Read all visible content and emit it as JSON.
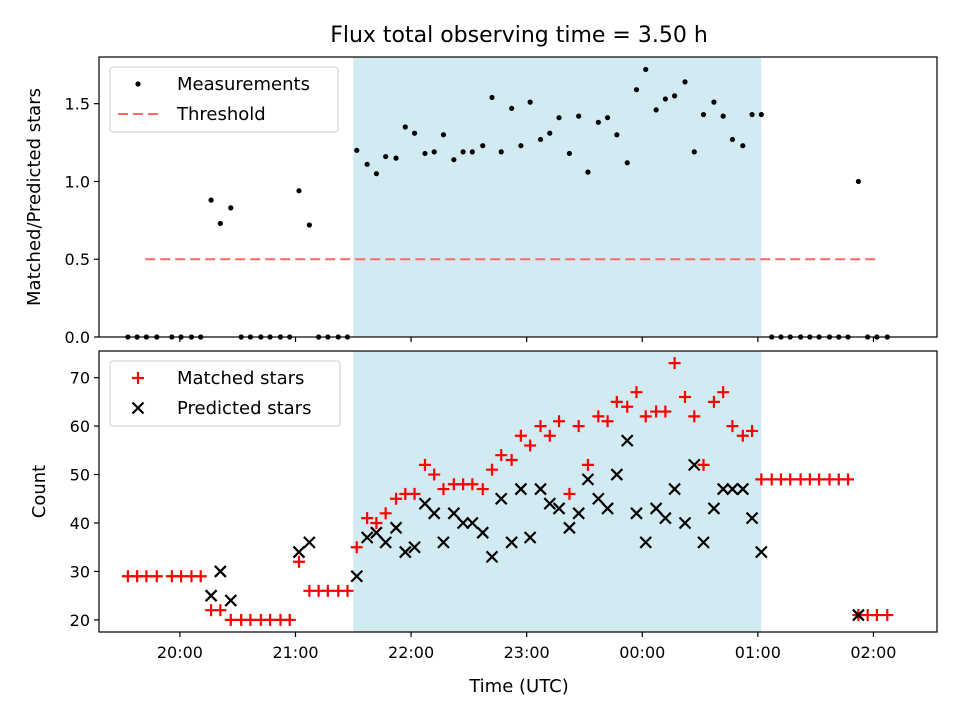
{
  "title": "Flux total observing time = 3.50 h",
  "xlabel": "Time (UTC)",
  "x_ticks": [
    "20:00",
    "21:00",
    "22:00",
    "23:00",
    "00:00",
    "01:00",
    "02:00"
  ],
  "colors": {
    "measurement": "#000000",
    "threshold": "#ff6666",
    "matched": "#ff0000",
    "predicted": "#000000",
    "shade": "#add8e6"
  },
  "chart_data": [
    {
      "type": "scatter",
      "ylabel": "Matched/Predicted stars",
      "ylim": [
        0,
        1.8
      ],
      "y_ticks": [
        "0.0",
        "0.5",
        "1.0",
        "1.5"
      ],
      "x_domain_hours": [
        19.3,
        26.55
      ],
      "shaded_x": [
        21.5,
        25.03
      ],
      "legend": {
        "placement": "upper-left",
        "entries": [
          "Measurements",
          "Threshold"
        ]
      },
      "threshold": {
        "value": 0.5,
        "x_range": [
          19.7,
          26.05
        ]
      },
      "series": [
        {
          "name": "Measurements",
          "marker": "dot",
          "points": [
            [
              19.55,
              0
            ],
            [
              19.63,
              0
            ],
            [
              19.71,
              0
            ],
            [
              19.8,
              0
            ],
            [
              19.93,
              0
            ],
            [
              20.01,
              0
            ],
            [
              20.1,
              0
            ],
            [
              20.18,
              0
            ],
            [
              20.27,
              0.88
            ],
            [
              20.35,
              0.73
            ],
            [
              20.44,
              0.83
            ],
            [
              20.53,
              0
            ],
            [
              20.61,
              0
            ],
            [
              20.7,
              0
            ],
            [
              20.78,
              0
            ],
            [
              20.87,
              0
            ],
            [
              20.95,
              0
            ],
            [
              21.03,
              0.94
            ],
            [
              21.12,
              0.72
            ],
            [
              21.2,
              0
            ],
            [
              21.28,
              0
            ],
            [
              21.37,
              0
            ],
            [
              21.45,
              0
            ],
            [
              21.53,
              1.2
            ],
            [
              21.62,
              1.11
            ],
            [
              21.7,
              1.05
            ],
            [
              21.78,
              1.16
            ],
            [
              21.87,
              1.15
            ],
            [
              21.95,
              1.35
            ],
            [
              22.03,
              1.31
            ],
            [
              22.12,
              1.18
            ],
            [
              22.2,
              1.19
            ],
            [
              22.28,
              1.3
            ],
            [
              22.37,
              1.14
            ],
            [
              22.45,
              1.19
            ],
            [
              22.53,
              1.19
            ],
            [
              22.62,
              1.23
            ],
            [
              22.7,
              1.54
            ],
            [
              22.78,
              1.19
            ],
            [
              22.87,
              1.47
            ],
            [
              22.95,
              1.23
            ],
            [
              23.03,
              1.51
            ],
            [
              23.12,
              1.27
            ],
            [
              23.2,
              1.31
            ],
            [
              23.28,
              1.41
            ],
            [
              23.37,
              1.18
            ],
            [
              23.45,
              1.42
            ],
            [
              23.53,
              1.06
            ],
            [
              23.62,
              1.38
            ],
            [
              23.7,
              1.41
            ],
            [
              23.78,
              1.3
            ],
            [
              23.87,
              1.12
            ],
            [
              23.95,
              1.59
            ],
            [
              24.03,
              1.72
            ],
            [
              24.12,
              1.46
            ],
            [
              24.2,
              1.53
            ],
            [
              24.28,
              1.55
            ],
            [
              24.37,
              1.64
            ],
            [
              24.45,
              1.19
            ],
            [
              24.53,
              1.43
            ],
            [
              24.62,
              1.51
            ],
            [
              24.7,
              1.42
            ],
            [
              24.78,
              1.27
            ],
            [
              24.87,
              1.23
            ],
            [
              24.95,
              1.43
            ],
            [
              25.03,
              1.43
            ],
            [
              25.12,
              0
            ],
            [
              25.2,
              0
            ],
            [
              25.28,
              0
            ],
            [
              25.37,
              0
            ],
            [
              25.45,
              0
            ],
            [
              25.53,
              0
            ],
            [
              25.62,
              0
            ],
            [
              25.7,
              0
            ],
            [
              25.78,
              0
            ],
            [
              25.87,
              1.0
            ],
            [
              25.95,
              0
            ],
            [
              26.03,
              0
            ],
            [
              26.12,
              0
            ]
          ]
        }
      ]
    },
    {
      "type": "scatter",
      "ylabel": "Count",
      "ylim": [
        17.5,
        75.5
      ],
      "y_ticks": [
        "20",
        "30",
        "40",
        "50",
        "60",
        "70"
      ],
      "x_domain_hours": [
        19.3,
        26.55
      ],
      "shaded_x": [
        21.5,
        25.03
      ],
      "legend": {
        "placement": "upper-left",
        "entries": [
          "Matched stars",
          "Predicted stars"
        ]
      },
      "series": [
        {
          "name": "Matched stars",
          "marker": "plus",
          "points": [
            [
              19.55,
              29
            ],
            [
              19.63,
              29
            ],
            [
              19.71,
              29
            ],
            [
              19.8,
              29
            ],
            [
              19.93,
              29
            ],
            [
              20.01,
              29
            ],
            [
              20.1,
              29
            ],
            [
              20.18,
              29
            ],
            [
              20.27,
              22
            ],
            [
              20.35,
              22
            ],
            [
              20.44,
              20
            ],
            [
              20.53,
              20
            ],
            [
              20.61,
              20
            ],
            [
              20.7,
              20
            ],
            [
              20.78,
              20
            ],
            [
              20.87,
              20
            ],
            [
              20.95,
              20
            ],
            [
              21.03,
              32
            ],
            [
              21.12,
              26
            ],
            [
              21.2,
              26
            ],
            [
              21.28,
              26
            ],
            [
              21.37,
              26
            ],
            [
              21.45,
              26
            ],
            [
              21.53,
              35
            ],
            [
              21.62,
              41
            ],
            [
              21.7,
              40
            ],
            [
              21.78,
              42
            ],
            [
              21.87,
              45
            ],
            [
              21.95,
              46
            ],
            [
              22.03,
              46
            ],
            [
              22.12,
              52
            ],
            [
              22.2,
              50
            ],
            [
              22.28,
              47
            ],
            [
              22.37,
              48
            ],
            [
              22.45,
              48
            ],
            [
              22.53,
              48
            ],
            [
              22.62,
              47
            ],
            [
              22.7,
              51
            ],
            [
              22.78,
              54
            ],
            [
              22.87,
              53
            ],
            [
              22.95,
              58
            ],
            [
              23.03,
              56
            ],
            [
              23.12,
              60
            ],
            [
              23.2,
              58
            ],
            [
              23.28,
              61
            ],
            [
              23.37,
              46
            ],
            [
              23.45,
              60
            ],
            [
              23.53,
              52
            ],
            [
              23.62,
              62
            ],
            [
              23.7,
              61
            ],
            [
              23.78,
              65
            ],
            [
              23.87,
              64
            ],
            [
              23.95,
              67
            ],
            [
              24.03,
              62
            ],
            [
              24.12,
              63
            ],
            [
              24.2,
              63
            ],
            [
              24.28,
              73
            ],
            [
              24.37,
              66
            ],
            [
              24.45,
              62
            ],
            [
              24.53,
              52
            ],
            [
              24.62,
              65
            ],
            [
              24.7,
              67
            ],
            [
              24.78,
              60
            ],
            [
              24.87,
              58
            ],
            [
              24.95,
              59
            ],
            [
              25.03,
              49
            ],
            [
              25.12,
              49
            ],
            [
              25.2,
              49
            ],
            [
              25.28,
              49
            ],
            [
              25.37,
              49
            ],
            [
              25.45,
              49
            ],
            [
              25.53,
              49
            ],
            [
              25.62,
              49
            ],
            [
              25.7,
              49
            ],
            [
              25.78,
              49
            ],
            [
              25.87,
              21
            ],
            [
              25.95,
              21
            ],
            [
              26.03,
              21
            ],
            [
              26.12,
              21
            ]
          ]
        },
        {
          "name": "Predicted stars",
          "marker": "x",
          "points": [
            [
              20.27,
              25
            ],
            [
              20.35,
              30
            ],
            [
              20.44,
              24
            ],
            [
              21.03,
              34
            ],
            [
              21.12,
              36
            ],
            [
              21.53,
              29
            ],
            [
              21.62,
              37
            ],
            [
              21.7,
              38
            ],
            [
              21.78,
              36
            ],
            [
              21.87,
              39
            ],
            [
              21.95,
              34
            ],
            [
              22.03,
              35
            ],
            [
              22.12,
              44
            ],
            [
              22.2,
              42
            ],
            [
              22.28,
              36
            ],
            [
              22.37,
              42
            ],
            [
              22.45,
              40
            ],
            [
              22.53,
              40
            ],
            [
              22.62,
              38
            ],
            [
              22.7,
              33
            ],
            [
              22.78,
              45
            ],
            [
              22.87,
              36
            ],
            [
              22.95,
              47
            ],
            [
              23.03,
              37
            ],
            [
              23.12,
              47
            ],
            [
              23.2,
              44
            ],
            [
              23.28,
              43
            ],
            [
              23.37,
              39
            ],
            [
              23.45,
              42
            ],
            [
              23.53,
              49
            ],
            [
              23.62,
              45
            ],
            [
              23.7,
              43
            ],
            [
              23.78,
              50
            ],
            [
              23.87,
              57
            ],
            [
              23.95,
              42
            ],
            [
              24.03,
              36
            ],
            [
              24.12,
              43
            ],
            [
              24.2,
              41
            ],
            [
              24.28,
              47
            ],
            [
              24.37,
              40
            ],
            [
              24.45,
              52
            ],
            [
              24.53,
              36
            ],
            [
              24.62,
              43
            ],
            [
              24.7,
              47
            ],
            [
              24.78,
              47
            ],
            [
              24.87,
              47
            ],
            [
              24.95,
              41
            ],
            [
              25.03,
              34
            ],
            [
              25.87,
              21
            ]
          ]
        }
      ]
    }
  ]
}
